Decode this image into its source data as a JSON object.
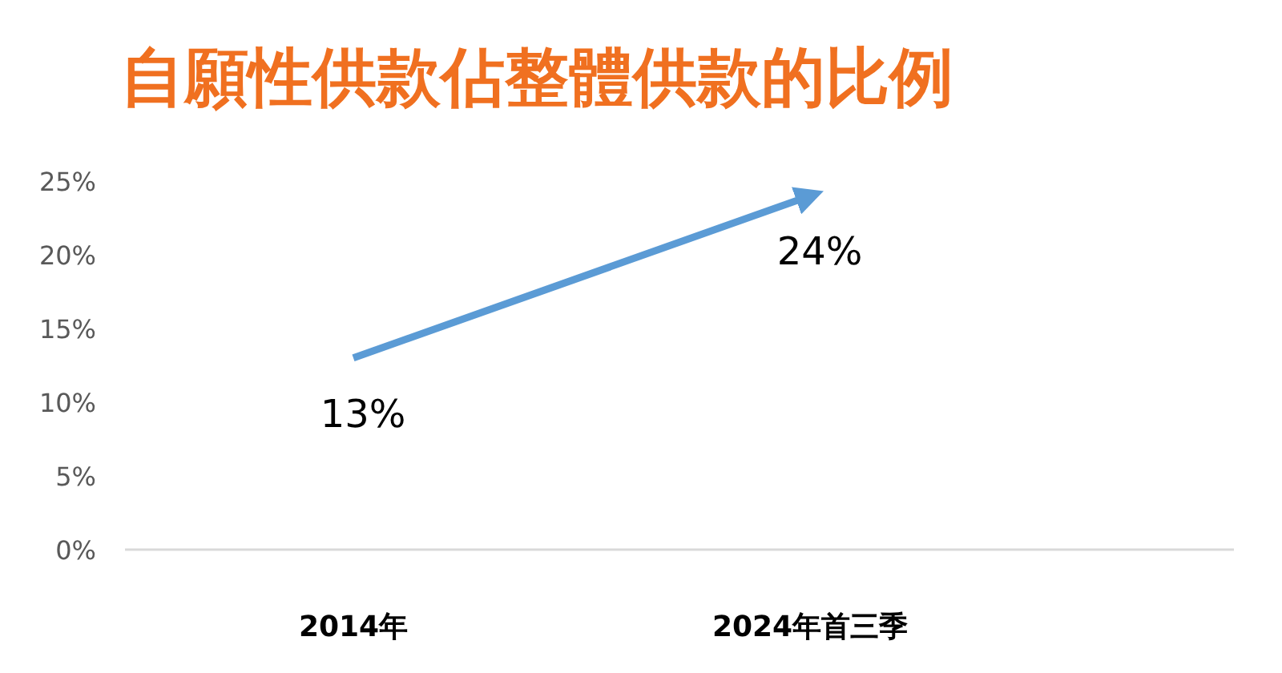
{
  "chart_data": {
    "type": "line",
    "title": "自願性供款佔整體供款的比例",
    "categories": [
      "2014年",
      "2024年首三季"
    ],
    "series": [
      {
        "color": "#5b9bd5",
        "values": [
          13,
          24
        ],
        "value_labels": [
          "13%",
          "24%"
        ]
      }
    ],
    "ylim": [
      0,
      25
    ],
    "yticks": [
      {
        "value": 0,
        "label": "0%"
      },
      {
        "value": 5,
        "label": "5%"
      },
      {
        "value": 10,
        "label": "10%"
      },
      {
        "value": 15,
        "label": "15%"
      },
      {
        "value": 20,
        "label": "20%"
      },
      {
        "value": 25,
        "label": "25%"
      }
    ],
    "grid": false,
    "marker": "none",
    "line_style": "solid"
  }
}
